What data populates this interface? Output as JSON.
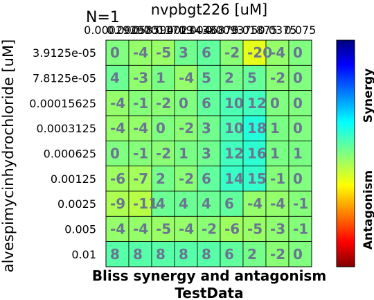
{
  "chart_data": {
    "type": "heatmap",
    "n_label": "N=1",
    "x_axis_title": "nvpbgt226 [uM]",
    "y_axis_title": "alvespimycinhydrochloride [uM]",
    "x_tick_labels": [
      "0.00029297",
      "0.00058594",
      "0.0011719",
      "0.0023438",
      "0.0046875",
      "0.009375",
      "0.01875",
      "0.0375",
      "0.075"
    ],
    "y_tick_labels": [
      "3.9125e-05",
      "7.8125e-05",
      "0.00015625",
      "0.0003125",
      "0.000625",
      "0.00125",
      "0.0025",
      "0.005",
      "0.01"
    ],
    "values": [
      [
        0,
        -4,
        -5,
        3,
        6,
        -2,
        -20,
        -4,
        0
      ],
      [
        4,
        -3,
        1,
        -4,
        5,
        2,
        5,
        -2,
        0
      ],
      [
        -4,
        -1,
        -2,
        0,
        6,
        10,
        12,
        0,
        0
      ],
      [
        -4,
        -4,
        0,
        -2,
        3,
        10,
        18,
        1,
        0
      ],
      [
        0,
        -1,
        -2,
        1,
        3,
        12,
        16,
        1,
        1
      ],
      [
        -6,
        -7,
        2,
        -2,
        6,
        14,
        15,
        -1,
        0
      ],
      [
        -9,
        -11,
        4,
        4,
        4,
        6,
        -4,
        -4,
        -1
      ],
      [
        -4,
        -4,
        -5,
        -4,
        -2,
        -6,
        -5,
        -3,
        -1
      ],
      [
        8,
        8,
        8,
        8,
        8,
        6,
        2,
        -2,
        0
      ]
    ],
    "colorbar": {
      "colormap": "jet",
      "range": [
        -100,
        100
      ],
      "top_label": "Synergy",
      "bottom_label": "Antagonism"
    },
    "title_line1": "Bliss synergy and antagonism",
    "title_line2": "TestData"
  }
}
